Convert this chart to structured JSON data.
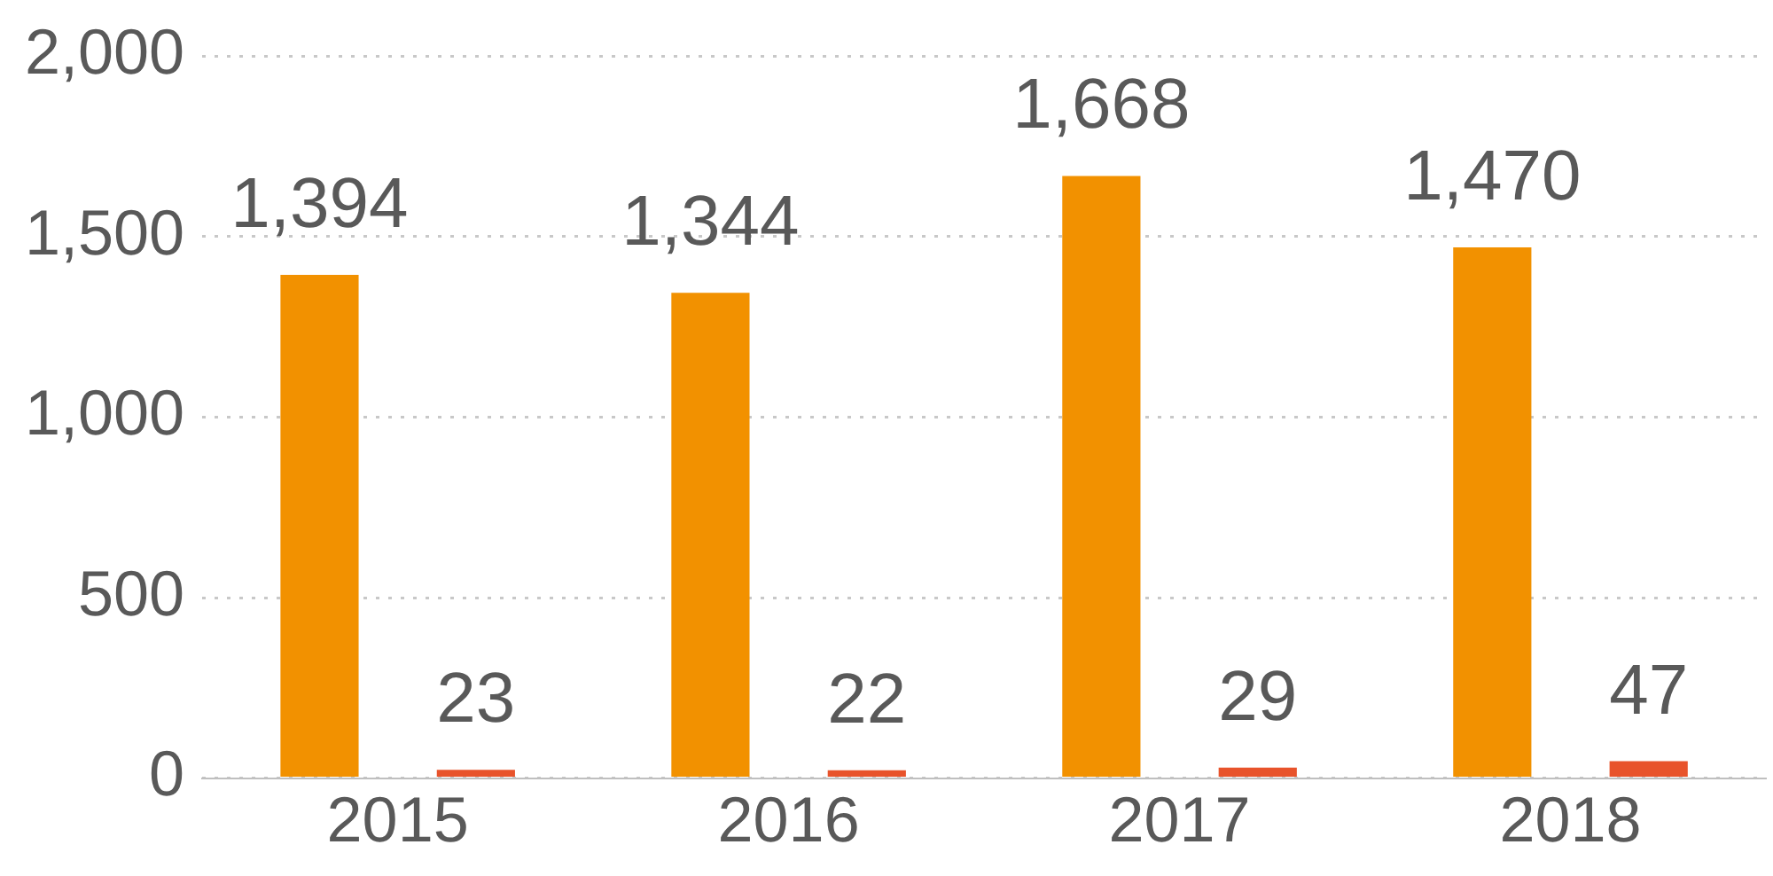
{
  "chart_data": {
    "type": "bar",
    "categories": [
      "2015",
      "2016",
      "2017",
      "2018"
    ],
    "series": [
      {
        "color": "#f29100",
        "values": [
          1394,
          1344,
          1668,
          1470
        ],
        "value_labels": [
          "1,394",
          "1,344",
          "1,668",
          "1,470"
        ]
      },
      {
        "color": "#e8532b",
        "values": [
          23,
          22,
          29,
          47
        ],
        "value_labels": [
          "23",
          "22",
          "29",
          "47"
        ]
      }
    ],
    "ylim": [
      0,
      2000
    ],
    "yticks": [
      {
        "value": 0,
        "label": "0"
      },
      {
        "value": 500,
        "label": "500"
      },
      {
        "value": 1000,
        "label": "1,000"
      },
      {
        "value": 1500,
        "label": "1,500"
      },
      {
        "value": 2000,
        "label": "2,000"
      }
    ],
    "grid": "y",
    "legend": false
  }
}
